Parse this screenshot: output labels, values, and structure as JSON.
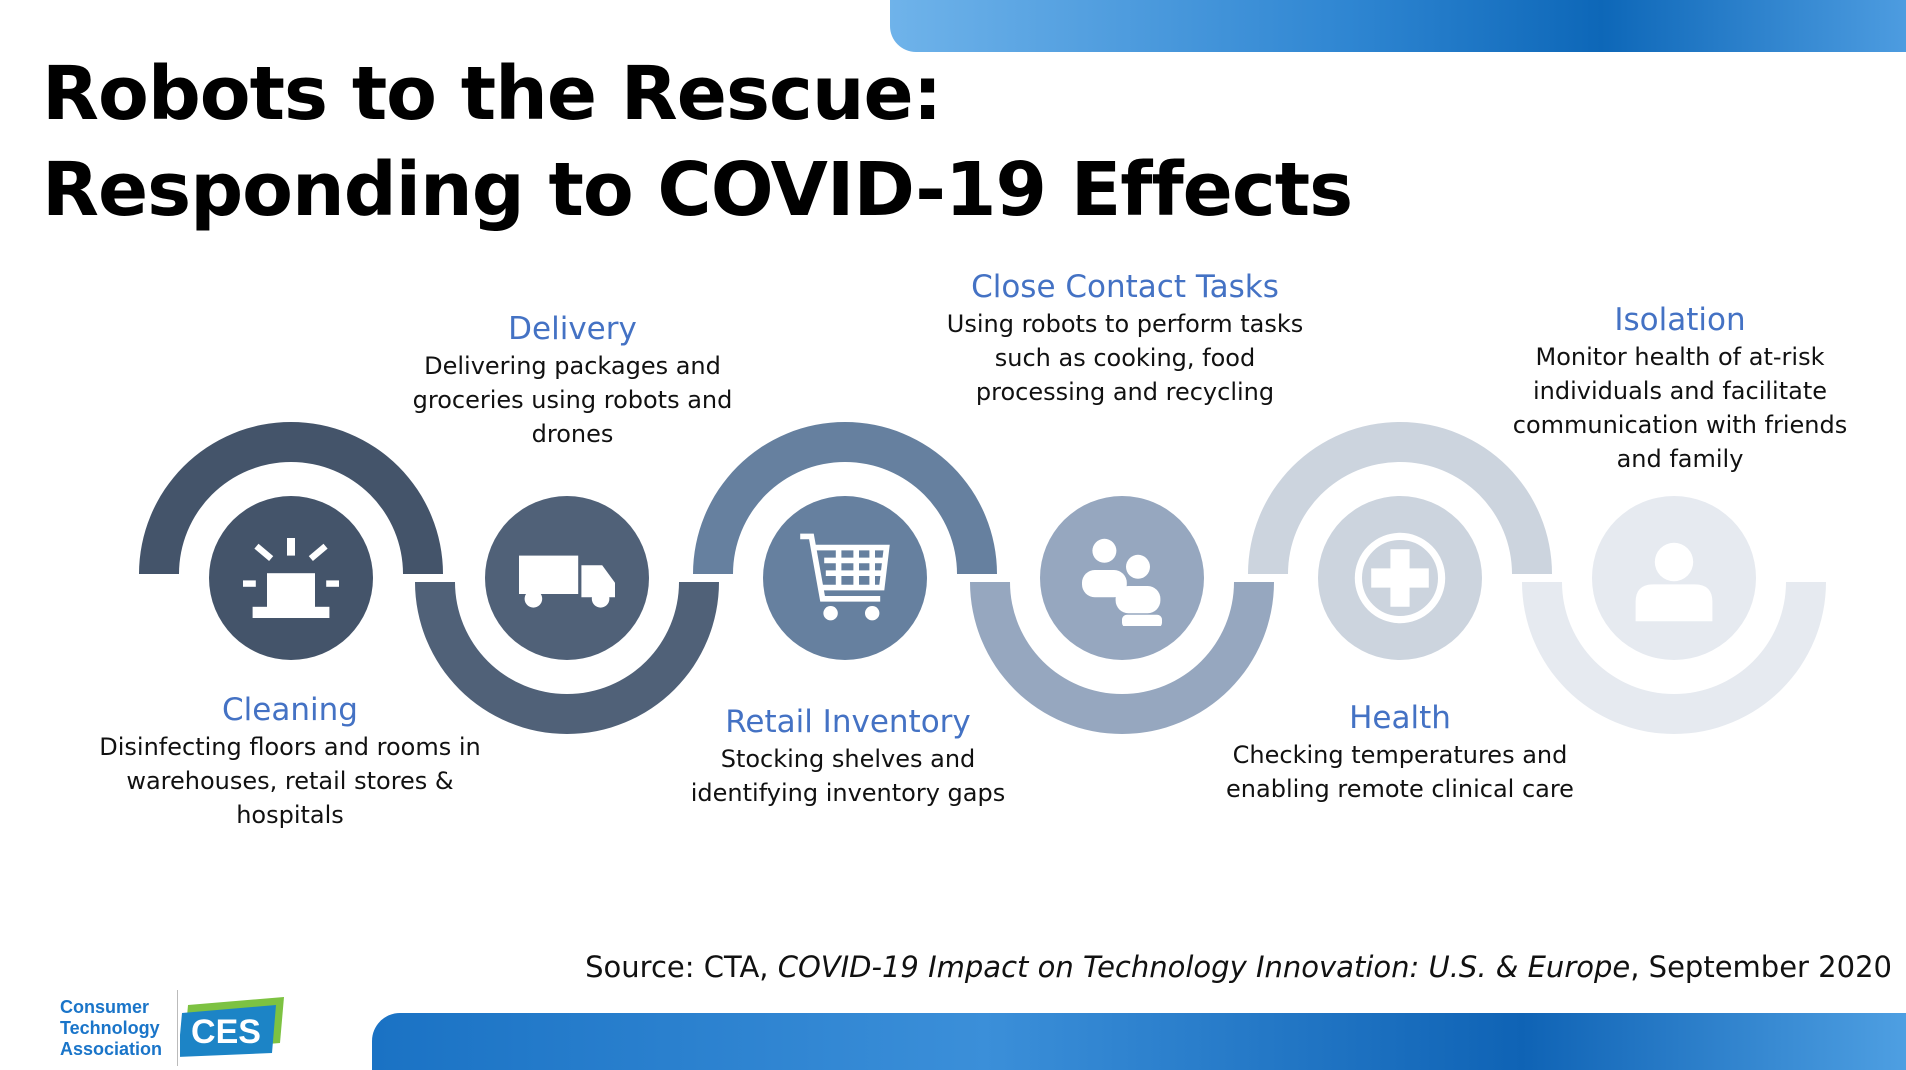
{
  "slide": {
    "title_line1": "Robots to the Rescue:",
    "title_line2": "Responding to COVID-19 Effects"
  },
  "steps": [
    {
      "id": "cleaning",
      "title": "Cleaning",
      "description": "Disinfecting floors and rooms in warehouses, retail stores & hospitals",
      "icon": "siren-icon",
      "color": "#44546a"
    },
    {
      "id": "delivery",
      "title": "Delivery",
      "description": "Delivering packages and groceries using robots and drones",
      "icon": "delivery-truck-icon",
      "color": "#506178"
    },
    {
      "id": "retail",
      "title": "Retail Inventory",
      "description": "Stocking shelves and identifying inventory gaps",
      "icon": "shopping-cart-icon",
      "color": "#66809f"
    },
    {
      "id": "close-contact",
      "title": "Close Contact Tasks",
      "description": "Using robots to perform tasks such as cooking, food processing and recycling",
      "icon": "people-group-icon",
      "color": "#96a7bf"
    },
    {
      "id": "health",
      "title": "Health",
      "description": "Checking temperatures and enabling remote clinical care",
      "icon": "medical-cross-icon",
      "color": "#ccd4de"
    },
    {
      "id": "isolation",
      "title": "Isolation",
      "description": "Monitor health of at-risk individuals and facilitate communication with friends and family",
      "icon": "person-icon",
      "color": "#e6eaf0"
    }
  ],
  "source": {
    "prefix": "Source: CTA, ",
    "report": "COVID-19 Impact on Technology Innovation: U.S. & Europe",
    "suffix": ", September 2020"
  },
  "branding": {
    "cta_line1": "Consumer",
    "cta_line2": "Technology",
    "cta_line3": "Association",
    "ces_text": "CES"
  },
  "colors": {
    "accent_blue": "#4472c4",
    "banner_blue": "#0d67b8",
    "white": "#ffffff"
  }
}
